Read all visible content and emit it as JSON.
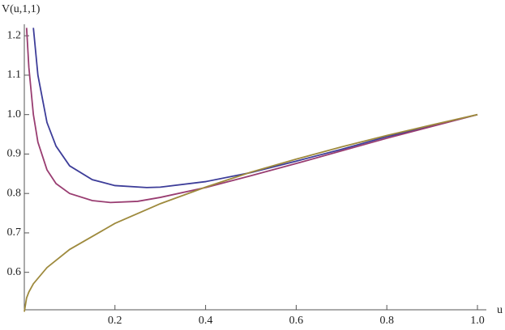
{
  "chart_data": {
    "type": "line",
    "xlabel": "u",
    "ylabel": "V(u,1,1)",
    "xlim": [
      0,
      1
    ],
    "ylim": [
      0.505,
      1.225
    ],
    "xticks": [
      0.2,
      0.4,
      0.6,
      0.8,
      {
        "value": 1,
        "label": "1.0"
      }
    ],
    "yticks": [
      0.6,
      0.7,
      0.8,
      0.9,
      {
        "value": 1,
        "label": "1.0"
      },
      1.1,
      1.2
    ],
    "series": [
      {
        "color": "#3d3d99",
        "x": [
          0.02,
          0.03,
          0.05,
          0.07,
          0.1,
          0.15,
          0.2,
          0.27,
          0.3,
          0.4,
          0.5,
          0.6,
          0.7,
          0.8,
          0.9,
          1
        ],
        "values": [
          1.22,
          1.1,
          0.98,
          0.92,
          0.87,
          0.835,
          0.82,
          0.815,
          0.816,
          0.83,
          0.853,
          0.882,
          0.912,
          0.944,
          0.971,
          1
        ]
      },
      {
        "color": "#993d71",
        "x": [
          0.005,
          0.01,
          0.02,
          0.03,
          0.05,
          0.07,
          0.1,
          0.15,
          0.19,
          0.25,
          0.3,
          0.4,
          0.5,
          0.6,
          0.7,
          0.8,
          0.9,
          1
        ],
        "values": [
          1.22,
          1.12,
          1.0,
          0.93,
          0.86,
          0.825,
          0.8,
          0.782,
          0.777,
          0.78,
          0.79,
          0.815,
          0.845,
          0.876,
          0.908,
          0.94,
          0.97,
          1
        ]
      },
      {
        "color": "#9e8a3d",
        "x": [
          0,
          0.005,
          0.01,
          0.02,
          0.05,
          0.1,
          0.2,
          0.3,
          0.4,
          0.5,
          0.6,
          0.7,
          0.8,
          0.9,
          1
        ],
        "values": [
          0.5,
          0.535,
          0.55,
          0.571,
          0.612,
          0.658,
          0.724,
          0.774,
          0.816,
          0.854,
          0.887,
          0.918,
          0.947,
          0.974,
          1
        ]
      }
    ]
  }
}
